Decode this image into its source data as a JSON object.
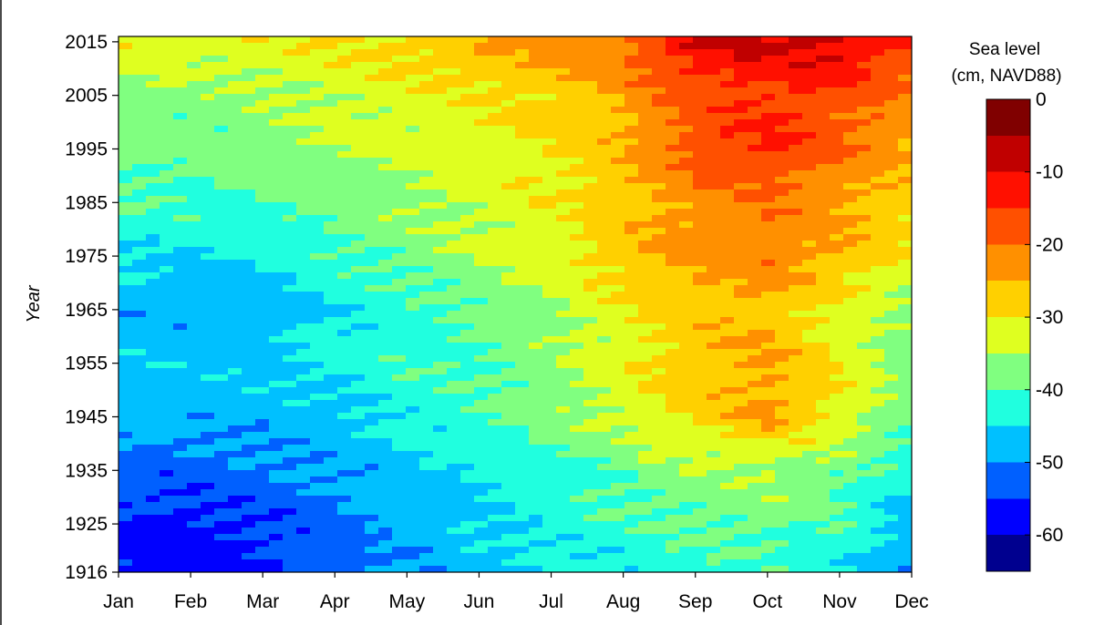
{
  "chart_data": {
    "type": "heatmap",
    "subtype": "filled-contour",
    "title": "",
    "xlabel": "",
    "ylabel": "Year",
    "x_categories": [
      "Jan",
      "Feb",
      "Mar",
      "Apr",
      "May",
      "Jun",
      "Jul",
      "Aug",
      "Sep",
      "Oct",
      "Nov",
      "Dec"
    ],
    "y_ticks": [
      1916,
      1925,
      1935,
      1945,
      1955,
      1965,
      1975,
      1985,
      1995,
      2005,
      2015
    ],
    "ylim": [
      1916,
      2016
    ],
    "colorbar": {
      "title_line1": "Sea level",
      "title_line2": "(cm, NAVD88)",
      "range": [
        -65,
        0
      ],
      "ticks": [
        0,
        -10,
        -20,
        -30,
        -40,
        -50,
        -60
      ],
      "tick_labels": [
        "0",
        "-10",
        "-20",
        "-30",
        "-40",
        "-50",
        "-60"
      ],
      "colormap": "jet-reversed",
      "contour_interval": 5,
      "colors": [
        "#00008f",
        "#0000ff",
        "#0060ff",
        "#00c0ff",
        "#20ffdf",
        "#80ff80",
        "#dfff20",
        "#ffd000",
        "#ff9000",
        "#ff5000",
        "#ff1000",
        "#c00000",
        "#800000"
      ]
    },
    "grid": false,
    "legend": "colorbar-right",
    "values_cm": {
      "years": [
        1916,
        1925,
        1935,
        1945,
        1955,
        1965,
        1975,
        1985,
        1995,
        2005,
        2015
      ],
      "months": [
        "Jan",
        "Feb",
        "Mar",
        "Apr",
        "May",
        "Jun",
        "Jul",
        "Aug",
        "Sep",
        "Oct",
        "Nov",
        "Dec"
      ],
      "rows": [
        [
          -57,
          -58,
          -56,
          -53,
          -49,
          -47,
          -45,
          -44,
          -42,
          -42,
          -44,
          -50
        ],
        [
          -56,
          -57,
          -55,
          -52,
          -48,
          -46,
          -43,
          -41,
          -39,
          -38,
          -41,
          -48
        ],
        [
          -52,
          -53,
          -51,
          -49,
          -47,
          -45,
          -42,
          -39,
          -36,
          -35,
          -38,
          -44
        ],
        [
          -48,
          -48,
          -48,
          -47,
          -43,
          -41,
          -37,
          -33,
          -29,
          -24,
          -31,
          -39
        ],
        [
          -46,
          -47,
          -46,
          -43,
          -41,
          -40,
          -37,
          -32,
          -26,
          -24,
          -31,
          -38
        ],
        [
          -48,
          -49,
          -48,
          -45,
          -42,
          -39,
          -36,
          -31,
          -27,
          -26,
          -32,
          -37
        ],
        [
          -45,
          -45,
          -44,
          -41,
          -38,
          -35,
          -32,
          -27,
          -23,
          -21,
          -25,
          -31
        ],
        [
          -40,
          -41,
          -40,
          -38,
          -36,
          -33,
          -31,
          -27,
          -23,
          -21,
          -24,
          -29
        ],
        [
          -38,
          -39,
          -37,
          -35,
          -34,
          -32,
          -30,
          -26,
          -17,
          -14,
          -19,
          -25
        ],
        [
          -37,
          -37,
          -36,
          -34,
          -32,
          -30,
          -28,
          -24,
          -18,
          -15,
          -17,
          -22
        ],
        [
          -31,
          -32,
          -31,
          -30,
          -28,
          -25,
          -23,
          -20,
          -9,
          -9,
          -8,
          -15
        ]
      ]
    }
  }
}
